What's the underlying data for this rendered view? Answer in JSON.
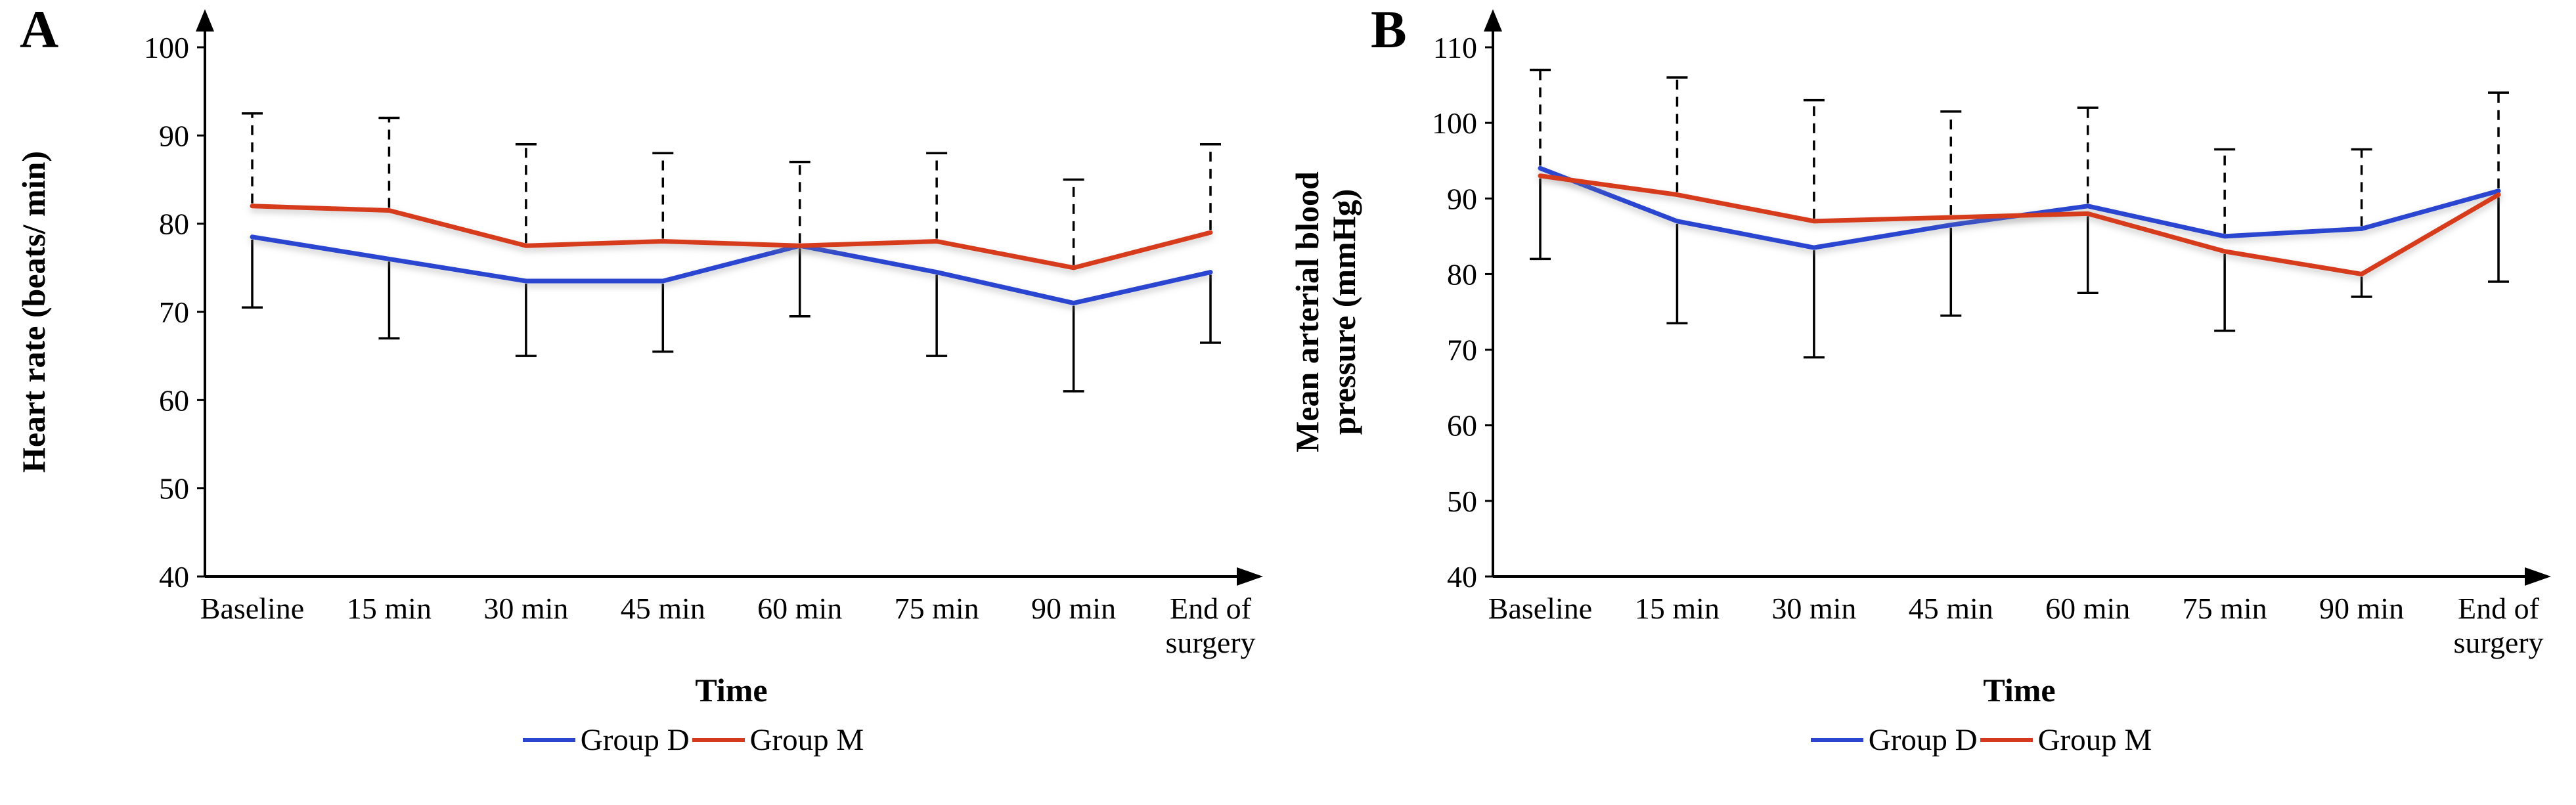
{
  "figure": {
    "background": "#ffffff"
  },
  "chart_data": [
    {
      "type": "line",
      "panel_label": "A",
      "title": "",
      "ylabel": "Heart rate (beats/ min)",
      "xlabel": "Time",
      "ylim": [
        40,
        100
      ],
      "yticks": [
        40,
        50,
        60,
        70,
        80,
        90,
        100
      ],
      "categories": [
        "Baseline",
        "15 min",
        "30 min",
        "45 min",
        "60 min",
        "75 min",
        "90 min",
        "End of\nsurgery"
      ],
      "series": [
        {
          "name": "Group D",
          "color": "#2b45cf",
          "values": [
            78.5,
            76,
            73.5,
            73.5,
            77.5,
            74.5,
            71,
            74.5
          ]
        },
        {
          "name": "Group M",
          "color": "#d63a1e",
          "values": [
            82,
            81.5,
            77.5,
            78,
            77.5,
            78,
            75,
            79
          ]
        }
      ],
      "error_upper": [
        92.5,
        92,
        89,
        88,
        87,
        88,
        85,
        89
      ],
      "error_lower": [
        70.5,
        67,
        65,
        65.5,
        69.5,
        65,
        61,
        66.5
      ],
      "error_bar_color": "#000000",
      "legend_position": "bottom",
      "grid": false
    },
    {
      "type": "line",
      "panel_label": "B",
      "title": "",
      "ylabel": "Mean arterial blood\npressure (mmHg)",
      "xlabel": "Time",
      "ylim": [
        40,
        110
      ],
      "yticks": [
        40,
        50,
        60,
        70,
        80,
        90,
        100,
        110
      ],
      "categories": [
        "Baseline",
        "15 min",
        "30 min",
        "45 min",
        "60 min",
        "75 min",
        "90 min",
        "End of\nsurgery"
      ],
      "series": [
        {
          "name": "Group D",
          "color": "#2b45cf",
          "values": [
            94,
            87,
            83.5,
            86.5,
            89,
            85,
            86,
            91
          ]
        },
        {
          "name": "Group M",
          "color": "#d63a1e",
          "values": [
            93,
            90.5,
            87,
            87.5,
            88,
            83,
            80,
            90.5
          ]
        }
      ],
      "error_upper": [
        107,
        106,
        103,
        101.5,
        102,
        96.5,
        96.5,
        104
      ],
      "error_lower": [
        82,
        73.5,
        69,
        74.5,
        77.5,
        72.5,
        77,
        79
      ],
      "error_bar_color": "#000000",
      "legend_position": "bottom",
      "grid": false
    }
  ]
}
